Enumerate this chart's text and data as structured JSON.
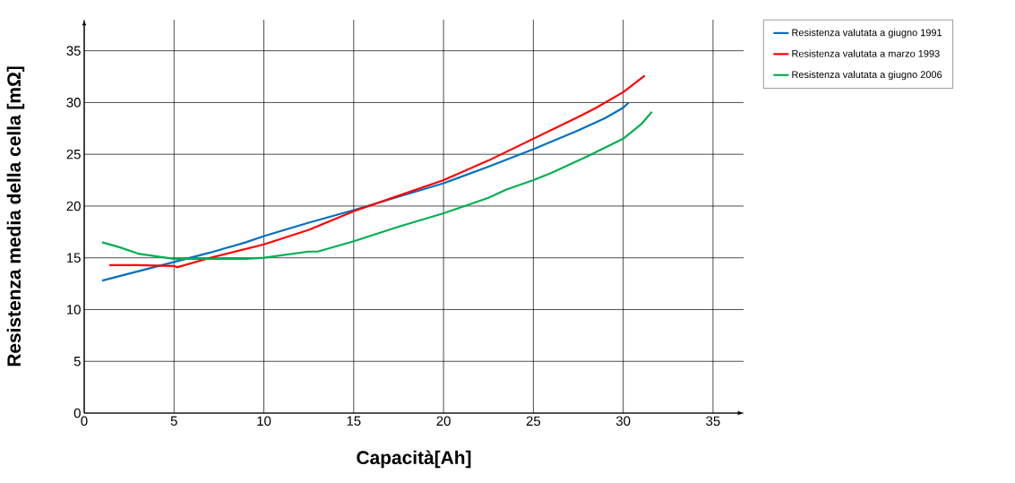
{
  "chart_data": {
    "type": "line",
    "xlabel": "Capacità[Ah]",
    "ylabel": "Resistenza media della cella [mΩ]",
    "xlim": [
      0,
      36.7
    ],
    "ylim": [
      0,
      38
    ],
    "xticks": [
      0,
      5,
      10,
      15,
      20,
      25,
      30,
      35
    ],
    "yticks": [
      0,
      5,
      10,
      15,
      20,
      25,
      30,
      35
    ],
    "grid": true,
    "legend": "top right",
    "marker": "none",
    "line_style": "solid",
    "series": [
      {
        "name": "Resistenza valutata a giugno 1991",
        "color": "#0070c0",
        "x": [
          1,
          3,
          5,
          7,
          9,
          10,
          12.5,
          15,
          17.5,
          20,
          22.5,
          25,
          27.5,
          29,
          30,
          30.3
        ],
        "values": [
          12.8,
          13.7,
          14.6,
          15.5,
          16.5,
          17.1,
          18.4,
          19.6,
          20.9,
          22.2,
          23.8,
          25.5,
          27.3,
          28.5,
          29.5,
          30
        ]
      },
      {
        "name": "Resistenza valutata a marzo 1993",
        "color": "#ff0000",
        "x": [
          1.4,
          3,
          5,
          5.2,
          7,
          10,
          12.5,
          15,
          17.5,
          20,
          22.5,
          25,
          27.5,
          28.5,
          30,
          31.2
        ],
        "values": [
          14.3,
          14.3,
          14.2,
          14.1,
          15,
          16.3,
          17.7,
          19.5,
          21,
          22.5,
          24.4,
          26.5,
          28.6,
          29.5,
          31,
          32.6
        ]
      },
      {
        "name": "Resistenza valutata a giugno 2006",
        "color": "#00b050",
        "x": [
          1,
          2,
          3,
          5,
          7,
          9,
          10,
          12.5,
          13,
          15,
          17.5,
          20,
          22.5,
          23.5,
          25,
          26,
          28,
          30,
          31,
          31.6
        ],
        "values": [
          16.5,
          16,
          15.4,
          14.9,
          14.9,
          14.9,
          15,
          15.6,
          15.6,
          16.6,
          18,
          19.3,
          20.8,
          21.6,
          22.5,
          23.2,
          24.8,
          26.5,
          27.9,
          29.1
        ]
      }
    ]
  }
}
